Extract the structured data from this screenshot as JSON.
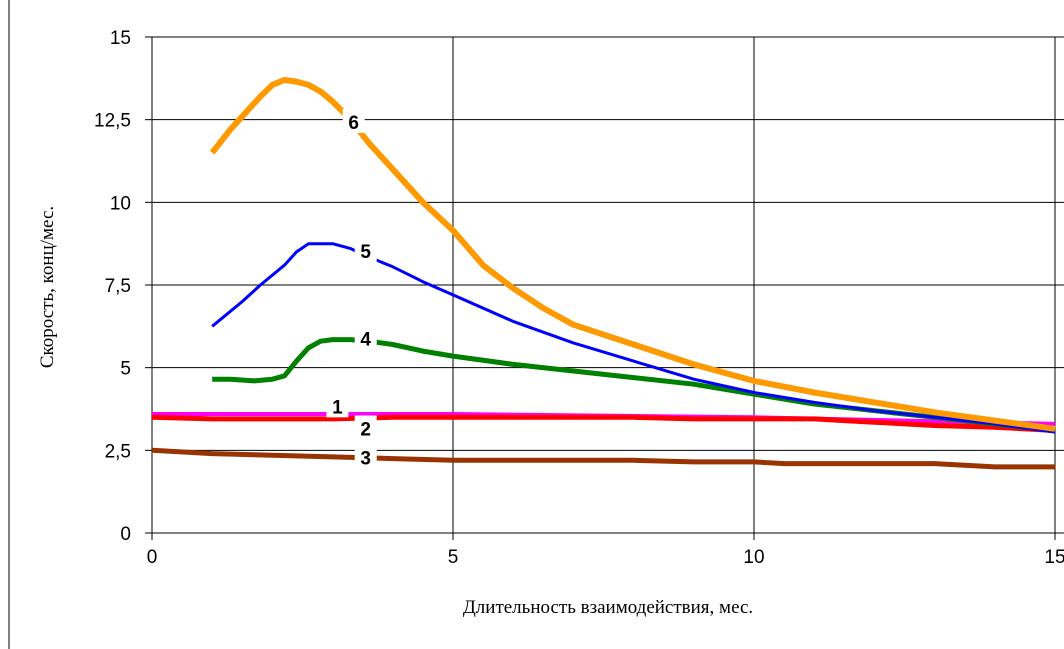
{
  "chart_data": {
    "type": "line",
    "title": "",
    "xlabel": "Длительность взаимодействия, мес.",
    "ylabel": "Скорость,  конц/мес.",
    "xlim": [
      0,
      15
    ],
    "ylim": [
      0,
      15
    ],
    "x_ticks": [
      0,
      5,
      10,
      15
    ],
    "y_ticks": [
      0,
      2.5,
      5,
      7.5,
      10,
      12.5,
      15
    ],
    "x_tick_labels": [
      "0",
      "5",
      "10",
      "15"
    ],
    "y_tick_labels": [
      "0",
      "2,5",
      "5",
      "7,5",
      "10",
      "12,5",
      "15"
    ],
    "grid": true,
    "legend": "none",
    "series": [
      {
        "name": "1",
        "color": "#ff00ff",
        "width": 4,
        "x": [
          0,
          5,
          10,
          15
        ],
        "y": [
          3.6,
          3.6,
          3.5,
          3.3
        ]
      },
      {
        "name": "2",
        "color": "#ff0000",
        "width": 5,
        "x": [
          0,
          1,
          2,
          3,
          4,
          5,
          6,
          7,
          8,
          9,
          10,
          11,
          11.5,
          12,
          13,
          14,
          15
        ],
        "y": [
          3.5,
          3.45,
          3.45,
          3.45,
          3.5,
          3.5,
          3.5,
          3.5,
          3.5,
          3.45,
          3.45,
          3.45,
          3.4,
          3.35,
          3.25,
          3.2,
          3.1
        ]
      },
      {
        "name": "3",
        "color": "#993300",
        "width": 5,
        "x": [
          0,
          1,
          2,
          3,
          4,
          5,
          6,
          7,
          8,
          9,
          10,
          10.5,
          11,
          12,
          13,
          14,
          15
        ],
        "y": [
          2.5,
          2.4,
          2.35,
          2.3,
          2.25,
          2.2,
          2.2,
          2.2,
          2.2,
          2.15,
          2.15,
          2.1,
          2.1,
          2.1,
          2.1,
          2.0,
          2.0
        ]
      },
      {
        "name": "4",
        "color": "#008000",
        "width": 5,
        "x": [
          1,
          1.3,
          1.7,
          2,
          2.2,
          2.4,
          2.6,
          2.8,
          3,
          3.3,
          3.6,
          4,
          4.5,
          5,
          6,
          7,
          8,
          9,
          10,
          11,
          12,
          13,
          14,
          15
        ],
        "y": [
          4.65,
          4.65,
          4.6,
          4.65,
          4.75,
          5.2,
          5.6,
          5.8,
          5.85,
          5.85,
          5.8,
          5.7,
          5.5,
          5.35,
          5.1,
          4.9,
          4.7,
          4.5,
          4.2,
          3.9,
          3.7,
          3.5,
          3.3,
          3.1
        ]
      },
      {
        "name": "5",
        "color": "#0000ff",
        "width": 3,
        "x": [
          1,
          1.5,
          1.8,
          2,
          2.2,
          2.4,
          2.6,
          2.8,
          3,
          3.3,
          3.6,
          4,
          4.5,
          5,
          6,
          7,
          8,
          9,
          10,
          11,
          12,
          13,
          14,
          15
        ],
        "y": [
          6.25,
          7.0,
          7.5,
          7.8,
          8.1,
          8.5,
          8.75,
          8.75,
          8.75,
          8.6,
          8.35,
          8.05,
          7.6,
          7.2,
          6.4,
          5.75,
          5.2,
          4.65,
          4.25,
          3.95,
          3.7,
          3.5,
          3.3,
          3.05
        ]
      },
      {
        "name": "6",
        "color": "#ff9900",
        "width": 6,
        "x": [
          1,
          1.3,
          1.6,
          1.8,
          2,
          2.2,
          2.4,
          2.6,
          2.8,
          3,
          3.3,
          3.6,
          4,
          4.5,
          5,
          5.5,
          6,
          6.5,
          7,
          8,
          9,
          10,
          11,
          12,
          13,
          14,
          15
        ],
        "y": [
          11.5,
          12.2,
          12.8,
          13.2,
          13.55,
          13.7,
          13.65,
          13.55,
          13.35,
          13.05,
          12.5,
          11.8,
          11.0,
          10.0,
          9.15,
          8.1,
          7.4,
          6.8,
          6.3,
          5.7,
          5.1,
          4.6,
          4.25,
          3.95,
          3.65,
          3.4,
          3.15
        ]
      }
    ],
    "curve_labels": [
      {
        "text": "1",
        "x": 3.08,
        "y": 3.8
      },
      {
        "text": "2",
        "x": 3.55,
        "y": 3.13
      },
      {
        "text": "3",
        "x": 3.55,
        "y": 2.25
      },
      {
        "text": "4",
        "x": 3.55,
        "y": 5.85
      },
      {
        "text": "5",
        "x": 3.55,
        "y": 8.5
      },
      {
        "text": "6",
        "x": 3.35,
        "y": 12.4
      }
    ]
  }
}
